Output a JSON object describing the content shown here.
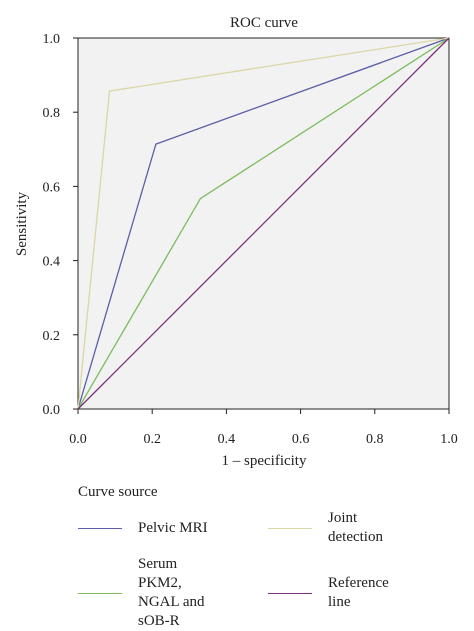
{
  "chart_data": {
    "type": "line",
    "title": "ROC curve",
    "xlabel": "1 – specificity",
    "ylabel": "Sensitivity",
    "xlim": [
      0,
      1
    ],
    "ylim": [
      0,
      1
    ],
    "xticks": [
      "0.0",
      "0.2",
      "0.4",
      "0.6",
      "0.8",
      "1.0"
    ],
    "yticks": [
      "0.0",
      "0.2",
      "0.4",
      "0.6",
      "0.8",
      "1.0"
    ],
    "grid": false,
    "legend_position": "bottom",
    "legend_title": "Curve source",
    "series": [
      {
        "name": "Pelvic MRI",
        "color": "#5b5ea6",
        "x": [
          0,
          0.21,
          1
        ],
        "y": [
          0,
          0.714,
          1
        ]
      },
      {
        "name": "Serum PKM2, NGAL and sOB-R",
        "color": "#7dbb5e",
        "x": [
          0,
          0.33,
          1
        ],
        "y": [
          0,
          0.567,
          1
        ]
      },
      {
        "name": "Joint detection",
        "color": "#d9d7a6",
        "x": [
          0,
          0.085,
          1
        ],
        "y": [
          0,
          0.857,
          1
        ]
      },
      {
        "name": "Reference line",
        "color": "#7a2f7a",
        "x": [
          0,
          1
        ],
        "y": [
          0,
          1
        ]
      }
    ]
  }
}
